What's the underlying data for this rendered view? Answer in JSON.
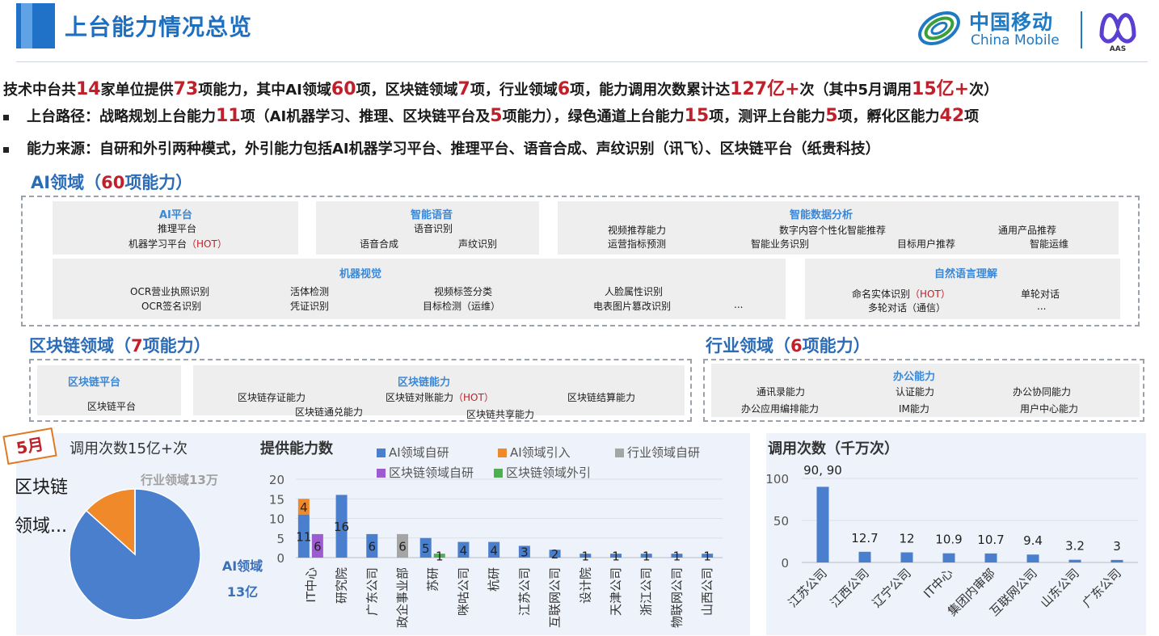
{
  "header": {
    "title": "上台能力情况总览",
    "logo_cn": "中国移动",
    "logo_en": "China Mobile",
    "logo_sub": "AAS"
  },
  "summary": {
    "p1": "技术中台共",
    "v1": "14",
    "p2": "家单位提供",
    "v2": "73",
    "p3": "项能力，其中AI领域",
    "v3": "60",
    "p4": "项，区块链领域",
    "v4": "7",
    "p5": "项，行业领域",
    "v5": "6",
    "p6": "项，能力调用次数累计达",
    "v6": "127亿+",
    "p7": "次（其中5月调用",
    "v7": "15亿+",
    "p8": "次）"
  },
  "bullet1": {
    "p1": "上台路径：战略规划上台能力",
    "v1": "11",
    "p2": "项（AI机器学习、推理、区块链平台及",
    "v2": "5",
    "p3": "项能力），绿色通道上台能力",
    "v3": "15",
    "p4": "项，测评上台能力",
    "v4": "5",
    "p5": "项，孵化区能力",
    "v5": "42",
    "p6": "项"
  },
  "bullet2": {
    "text": "能力来源：自研和外引两种模式，外引能力包括AI机器学习平台、推理平台、语音合成、声纹识别（讯飞）、区块链平台（纸贵科技）"
  },
  "ai_section": {
    "title_a": "AI领域（",
    "title_num": "60",
    "title_b": "项能力）",
    "boxes": {
      "platform": {
        "title": "AI平台",
        "items": [
          "推理平台",
          "机器学习平台"
        ],
        "hot": "（HOT）"
      },
      "voice": {
        "title": "智能语音",
        "items": [
          "语音识别",
          "语音合成",
          "声纹识别"
        ]
      },
      "data": {
        "title": "智能数据分析",
        "items": [
          "视频推荐能力",
          "运营指标预测",
          "数字内容个性化智能推荐",
          "智能业务识别",
          "目标用户推荐",
          "通用产品推荐",
          "智能运维"
        ]
      },
      "vision": {
        "title": "机器视觉",
        "items": [
          "OCR营业执照识别",
          "OCR签名识别",
          "活体检测",
          "凭证识别",
          "视频标签分类",
          "目标检测（运维）",
          "人脸属性识别",
          "电表图片篡改识别",
          "..."
        ]
      },
      "nlp": {
        "title": "自然语言理解",
        "items": [
          "命名实体识别",
          "多轮对话（通信）",
          "单轮对话",
          "..."
        ],
        "hot": "（HOT）"
      }
    }
  },
  "blockchain_section": {
    "title_a": "区块链领域（",
    "title_num": "7",
    "title_b": "项能力）",
    "platform": {
      "title": "区块链平台",
      "item": "区块链平台"
    },
    "ability": {
      "title": "区块链能力",
      "items": [
        "区块链存证能力",
        "区块链对账能力",
        "区块链结算能力",
        "区块链通兑能力",
        "区块链共享能力"
      ],
      "hot": "（HOT）"
    }
  },
  "industry_section": {
    "title_a": "行业领域（",
    "title_num": "6",
    "title_b": "项能力）",
    "office": {
      "title": "办公能力",
      "items": [
        "通讯录能力",
        "认证能力",
        "办公协同能力",
        "办公应用编排能力",
        "IM能力",
        "用户中心能力"
      ]
    }
  },
  "month_badge": "5月",
  "chart_data": [
    {
      "type": "pie",
      "title": "调用次数15亿+次",
      "slices": [
        {
          "label": "AI领域\n13亿",
          "value": 13,
          "color": "#4a7fce"
        },
        {
          "label": "区块链\n领域...",
          "value": 2,
          "color": "#f0892a"
        },
        {
          "label": "行业领域13万",
          "value": 0.0013,
          "color": "#a5a5a5"
        }
      ]
    },
    {
      "type": "bar",
      "title": "提供能力数",
      "stacked": true,
      "categories": [
        "IT中心",
        "研究院",
        "广东公司",
        "政企事业部",
        "苏研",
        "咪咕公司",
        "杭研",
        "江苏公司",
        "互联网公司",
        "设计院",
        "天津公司",
        "浙江公司",
        "物联网公司",
        "山西公司"
      ],
      "series": [
        {
          "name": "AI领域自研",
          "color": "#4a7fce",
          "values": [
            11,
            16,
            6,
            0,
            5,
            4,
            4,
            3,
            2,
            1,
            1,
            1,
            1,
            1
          ]
        },
        {
          "name": "AI领域引入",
          "color": "#f0892a",
          "values": [
            4,
            0,
            0,
            0,
            0,
            0,
            0,
            0,
            0,
            0,
            0,
            0,
            0,
            0
          ]
        },
        {
          "name": "行业领域自研",
          "color": "#a5a5a5",
          "values": [
            0,
            0,
            0,
            6,
            0,
            0,
            0,
            0,
            0,
            0,
            0,
            0,
            0,
            0
          ]
        },
        {
          "name": "区块链领域自研",
          "color": "#9c5bd0",
          "values": [
            6,
            0,
            0,
            0,
            0,
            0,
            0,
            0,
            0,
            0,
            0,
            0,
            0,
            0
          ]
        },
        {
          "name": "区块链领域外引",
          "color": "#4caf50",
          "values": [
            0,
            0,
            0,
            0,
            1,
            0,
            0,
            0,
            0,
            0,
            0,
            0,
            0,
            0
          ]
        }
      ],
      "ylim": [
        0,
        20
      ],
      "yticks": [
        0,
        5,
        10,
        15,
        20
      ]
    },
    {
      "type": "bar",
      "title": "调用次数（千万次）",
      "categories": [
        "江苏公司",
        "江西公司",
        "辽宁公司",
        "IT中心",
        "集团内审部",
        "互联网公司",
        "山东公司",
        "广东公司"
      ],
      "values": [
        90,
        12.7,
        12,
        10.9,
        10.7,
        9.4,
        3.2,
        3
      ],
      "value_labels": [
        "90, 90",
        "12.7",
        "12",
        "10.9",
        "10.7",
        "9.4",
        "3.2",
        "3"
      ],
      "color": "#4a7fce",
      "ylim": [
        0,
        100
      ],
      "yticks": [
        0,
        50,
        100
      ]
    }
  ]
}
